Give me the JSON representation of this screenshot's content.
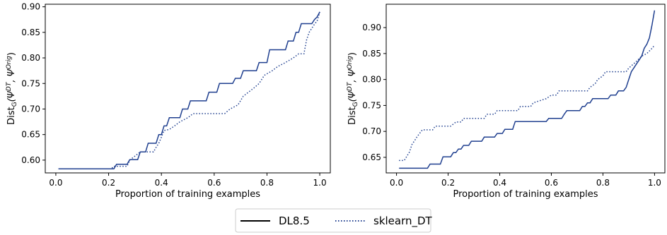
{
  "legend": {
    "items": [
      {
        "label": "DL8.5",
        "style": "solid"
      },
      {
        "label": "sklearn_DT",
        "style": "dotted"
      }
    ],
    "placement": "bottom-center"
  },
  "colors": {
    "series": "#1f3f8f"
  },
  "chart_data": [
    {
      "type": "line",
      "xlabel": "Proportion of training examples",
      "ylabel_main": "Dist",
      "ylabel_sub": "G",
      "ylabel_args": "(Ψ",
      "ylabel_sup1": "DT",
      "ylabel_mid": ", Ψ",
      "ylabel_sup2": "Orig",
      "ylabel_end": ")",
      "xlim": [
        -0.04,
        1.04
      ],
      "ylim": [
        0.575,
        0.905
      ],
      "xticks": [
        0.0,
        0.2,
        0.4,
        0.6,
        0.8,
        1.0
      ],
      "xtick_labels": [
        "0.0",
        "0.2",
        "0.4",
        "0.6",
        "0.8",
        "1.0"
      ],
      "yticks": [
        0.6,
        0.65,
        0.7,
        0.75,
        0.8,
        0.85,
        0.9
      ],
      "ytick_labels": [
        "0.60",
        "0.65",
        "0.70",
        "0.75",
        "0.80",
        "0.85",
        "0.90"
      ],
      "grid": false,
      "series": [
        {
          "name": "DL8.5",
          "style": "solid",
          "points": [
            [
              0.01,
              0.583
            ],
            [
              0.22,
              0.583
            ],
            [
              0.23,
              0.592
            ],
            [
              0.27,
              0.592
            ],
            [
              0.28,
              0.601
            ],
            [
              0.31,
              0.601
            ],
            [
              0.32,
              0.616
            ],
            [
              0.34,
              0.616
            ],
            [
              0.35,
              0.633
            ],
            [
              0.38,
              0.633
            ],
            [
              0.39,
              0.65
            ],
            [
              0.4,
              0.65
            ],
            [
              0.41,
              0.667
            ],
            [
              0.42,
              0.667
            ],
            [
              0.43,
              0.683
            ],
            [
              0.47,
              0.683
            ],
            [
              0.48,
              0.7
            ],
            [
              0.5,
              0.7
            ],
            [
              0.51,
              0.716
            ],
            [
              0.57,
              0.716
            ],
            [
              0.58,
              0.733
            ],
            [
              0.61,
              0.733
            ],
            [
              0.62,
              0.75
            ],
            [
              0.67,
              0.75
            ],
            [
              0.68,
              0.76
            ],
            [
              0.7,
              0.76
            ],
            [
              0.71,
              0.775
            ],
            [
              0.76,
              0.775
            ],
            [
              0.77,
              0.791
            ],
            [
              0.8,
              0.791
            ],
            [
              0.81,
              0.816
            ],
            [
              0.87,
              0.816
            ],
            [
              0.88,
              0.833
            ],
            [
              0.9,
              0.833
            ],
            [
              0.91,
              0.85
            ],
            [
              0.92,
              0.85
            ],
            [
              0.93,
              0.867
            ],
            [
              0.97,
              0.867
            ],
            [
              0.98,
              0.875
            ],
            [
              0.99,
              0.88
            ],
            [
              1.0,
              0.89
            ]
          ]
        },
        {
          "name": "sklearn_DT",
          "style": "dotted",
          "points": [
            [
              0.01,
              0.583
            ],
            [
              0.21,
              0.583
            ],
            [
              0.22,
              0.588
            ],
            [
              0.27,
              0.588
            ],
            [
              0.28,
              0.6
            ],
            [
              0.3,
              0.608
            ],
            [
              0.32,
              0.616
            ],
            [
              0.37,
              0.616
            ],
            [
              0.38,
              0.625
            ],
            [
              0.39,
              0.633
            ],
            [
              0.4,
              0.645
            ],
            [
              0.41,
              0.658
            ],
            [
              0.43,
              0.66
            ],
            [
              0.45,
              0.667
            ],
            [
              0.47,
              0.675
            ],
            [
              0.5,
              0.683
            ],
            [
              0.52,
              0.691
            ],
            [
              0.64,
              0.691
            ],
            [
              0.66,
              0.7
            ],
            [
              0.69,
              0.708
            ],
            [
              0.71,
              0.725
            ],
            [
              0.73,
              0.733
            ],
            [
              0.75,
              0.741
            ],
            [
              0.77,
              0.75
            ],
            [
              0.79,
              0.766
            ],
            [
              0.82,
              0.775
            ],
            [
              0.84,
              0.783
            ],
            [
              0.87,
              0.791
            ],
            [
              0.9,
              0.8
            ],
            [
              0.92,
              0.808
            ],
            [
              0.94,
              0.808
            ],
            [
              0.95,
              0.835
            ],
            [
              0.96,
              0.85
            ],
            [
              0.97,
              0.858
            ],
            [
              0.98,
              0.866
            ],
            [
              0.99,
              0.872
            ],
            [
              1.0,
              0.89
            ]
          ]
        }
      ]
    },
    {
      "type": "line",
      "xlabel": "Proportion of training examples",
      "ylabel_main": "Dist",
      "ylabel_sub": "G",
      "ylabel_args": "(Ψ",
      "ylabel_sup1": "DT",
      "ylabel_mid": ", Ψ",
      "ylabel_sup2": "Orig",
      "ylabel_end": ")",
      "xlim": [
        -0.04,
        1.04
      ],
      "ylim": [
        0.62,
        0.945
      ],
      "xticks": [
        0.0,
        0.2,
        0.4,
        0.6,
        0.8,
        1.0
      ],
      "xtick_labels": [
        "0.0",
        "0.2",
        "0.4",
        "0.6",
        "0.8",
        "1.0"
      ],
      "yticks": [
        0.65,
        0.7,
        0.75,
        0.8,
        0.85,
        0.9
      ],
      "ytick_labels": [
        "0.65",
        "0.70",
        "0.75",
        "0.80",
        "0.85",
        "0.90"
      ],
      "grid": false,
      "series": [
        {
          "name": "DL8.5",
          "style": "solid",
          "points": [
            [
              0.01,
              0.629
            ],
            [
              0.12,
              0.629
            ],
            [
              0.13,
              0.637
            ],
            [
              0.17,
              0.637
            ],
            [
              0.18,
              0.651
            ],
            [
              0.21,
              0.651
            ],
            [
              0.22,
              0.659
            ],
            [
              0.23,
              0.659
            ],
            [
              0.24,
              0.666
            ],
            [
              0.25,
              0.666
            ],
            [
              0.26,
              0.673
            ],
            [
              0.28,
              0.673
            ],
            [
              0.29,
              0.681
            ],
            [
              0.33,
              0.681
            ],
            [
              0.34,
              0.689
            ],
            [
              0.38,
              0.689
            ],
            [
              0.39,
              0.696
            ],
            [
              0.41,
              0.696
            ],
            [
              0.42,
              0.704
            ],
            [
              0.45,
              0.704
            ],
            [
              0.46,
              0.719
            ],
            [
              0.58,
              0.719
            ],
            [
              0.59,
              0.725
            ],
            [
              0.64,
              0.725
            ],
            [
              0.65,
              0.733
            ],
            [
              0.66,
              0.74
            ],
            [
              0.71,
              0.74
            ],
            [
              0.72,
              0.748
            ],
            [
              0.73,
              0.748
            ],
            [
              0.74,
              0.755
            ],
            [
              0.75,
              0.755
            ],
            [
              0.76,
              0.763
            ],
            [
              0.82,
              0.763
            ],
            [
              0.83,
              0.77
            ],
            [
              0.85,
              0.77
            ],
            [
              0.86,
              0.778
            ],
            [
              0.88,
              0.778
            ],
            [
              0.89,
              0.785
            ],
            [
              0.9,
              0.8
            ],
            [
              0.91,
              0.815
            ],
            [
              0.93,
              0.83
            ],
            [
              0.95,
              0.845
            ],
            [
              0.96,
              0.86
            ],
            [
              0.97,
              0.868
            ],
            [
              0.98,
              0.88
            ],
            [
              0.99,
              0.905
            ],
            [
              1.0,
              0.933
            ]
          ]
        },
        {
          "name": "sklearn_DT",
          "style": "dotted",
          "points": [
            [
              0.01,
              0.644
            ],
            [
              0.03,
              0.644
            ],
            [
              0.05,
              0.66
            ],
            [
              0.06,
              0.675
            ],
            [
              0.07,
              0.682
            ],
            [
              0.08,
              0.69
            ],
            [
              0.1,
              0.703
            ],
            [
              0.14,
              0.703
            ],
            [
              0.15,
              0.71
            ],
            [
              0.21,
              0.71
            ],
            [
              0.23,
              0.718
            ],
            [
              0.25,
              0.718
            ],
            [
              0.26,
              0.725
            ],
            [
              0.34,
              0.725
            ],
            [
              0.35,
              0.733
            ],
            [
              0.38,
              0.733
            ],
            [
              0.39,
              0.74
            ],
            [
              0.47,
              0.74
            ],
            [
              0.48,
              0.748
            ],
            [
              0.52,
              0.748
            ],
            [
              0.53,
              0.755
            ],
            [
              0.58,
              0.763
            ],
            [
              0.6,
              0.77
            ],
            [
              0.62,
              0.77
            ],
            [
              0.63,
              0.778
            ],
            [
              0.74,
              0.778
            ],
            [
              0.75,
              0.785
            ],
            [
              0.77,
              0.792
            ],
            [
              0.78,
              0.8
            ],
            [
              0.8,
              0.807
            ],
            [
              0.81,
              0.815
            ],
            [
              0.89,
              0.815
            ],
            [
              0.9,
              0.822
            ],
            [
              0.93,
              0.835
            ],
            [
              0.95,
              0.845
            ],
            [
              0.97,
              0.85
            ],
            [
              0.98,
              0.855
            ],
            [
              0.99,
              0.86
            ],
            [
              1.0,
              0.866
            ]
          ]
        }
      ]
    }
  ]
}
